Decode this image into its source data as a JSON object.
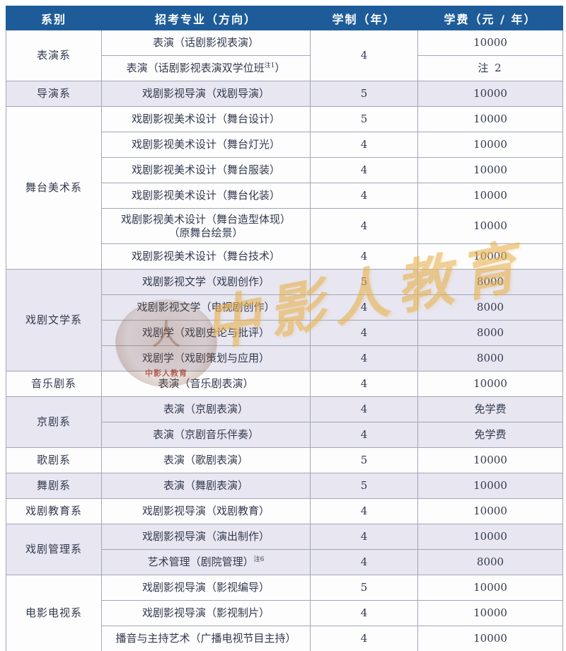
{
  "colors": {
    "header_bg": "#1e5c99",
    "header_text": "#ffffff",
    "row_bg": "#fdfdfe",
    "row_alt_bg": "#e7e6f1",
    "border": "#a3a7b6",
    "text": "#333a4e",
    "gold": "#e8b14e"
  },
  "watermark": {
    "brand_text": "中影人教育",
    "seal_text": "中影人教育",
    "seal_figure": "人"
  },
  "table": {
    "columns": [
      "系别",
      "招考专业（方向）",
      "学制（年）",
      "学费（元 / 年）"
    ],
    "groups": [
      {
        "dept": "表演系",
        "rows": [
          {
            "major": "表演（话剧影视表演）",
            "years": "4",
            "years_rowspan": 2,
            "tuition": "10000"
          },
          {
            "major": "表演（话剧影视表演双学位班",
            "sup": "注1",
            "tail": "）",
            "years": null,
            "tuition": "注 2",
            "tuition_small": true
          }
        ]
      },
      {
        "dept": "导演系",
        "rows": [
          {
            "major": "戏剧影视导演（戏剧导演）",
            "years": "5",
            "tuition": "10000"
          }
        ]
      },
      {
        "dept": "舞台美术系",
        "rows": [
          {
            "major": "戏剧影视美术设计（舞台设计）",
            "years": "5",
            "tuition": "10000"
          },
          {
            "major": "戏剧影视美术设计（舞台灯光）",
            "years": "4",
            "tuition": "10000"
          },
          {
            "major": "戏剧影视美术设计（舞台服装）",
            "years": "4",
            "tuition": "10000"
          },
          {
            "major": "戏剧影视美术设计（舞台化装）",
            "years": "4",
            "tuition": "10000"
          },
          {
            "major": "戏剧影视美术设计（舞台造型体现）",
            "major_line2": "（原舞台绘景）",
            "years": "4",
            "tuition": "10000",
            "tall": true
          },
          {
            "major": "戏剧影视美术设计（舞台技术）",
            "years": "4",
            "tuition": "10000"
          }
        ]
      },
      {
        "dept": "戏剧文学系",
        "rows": [
          {
            "major": "戏剧影视文学（戏剧创作）",
            "years": "5",
            "tuition": "8000"
          },
          {
            "major": "戏剧影视文学（电视剧创作）",
            "years": "4",
            "tuition": "8000"
          },
          {
            "major": "戏剧学（戏剧史论与批评）",
            "years": "4",
            "tuition": "8000"
          },
          {
            "major": "戏剧学（戏剧策划与应用）",
            "years": "4",
            "tuition": "8000"
          }
        ]
      },
      {
        "dept": "音乐剧系",
        "rows": [
          {
            "major": "表演（音乐剧表演）",
            "years": "4",
            "tuition": "10000"
          }
        ]
      },
      {
        "dept": "京剧系",
        "rows": [
          {
            "major": "表演（京剧表演）",
            "years": "4",
            "tuition": "免学费"
          },
          {
            "major": "表演（京剧音乐伴奏）",
            "years": "4",
            "tuition": "免学费"
          }
        ]
      },
      {
        "dept": "歌剧系",
        "rows": [
          {
            "major": "表演（歌剧表演）",
            "years": "5",
            "tuition": "10000"
          }
        ]
      },
      {
        "dept": "舞剧系",
        "rows": [
          {
            "major": "表演（舞剧表演）",
            "years": "5",
            "tuition": "10000"
          }
        ]
      },
      {
        "dept": "戏剧教育系",
        "rows": [
          {
            "major": "戏剧影视导演（戏剧教育）",
            "years": "4",
            "tuition": "10000"
          }
        ]
      },
      {
        "dept": "戏剧管理系",
        "rows": [
          {
            "major": "戏剧影视导演（演出制作）",
            "years": "4",
            "tuition": "10000"
          },
          {
            "major": "艺术管理（剧院管理）",
            "sup": "注6",
            "years": "4",
            "tuition": "8000"
          }
        ]
      },
      {
        "dept": "电影电视系",
        "rows": [
          {
            "major": "戏剧影视导演（影视编导）",
            "years": "5",
            "tuition": "10000"
          },
          {
            "major": "戏剧影视导演（影视制片）",
            "years": "4",
            "tuition": "10000"
          },
          {
            "major": "播音与主持艺术（广播电视节目主持）",
            "years": "4",
            "tuition": "10000"
          }
        ]
      }
    ]
  }
}
